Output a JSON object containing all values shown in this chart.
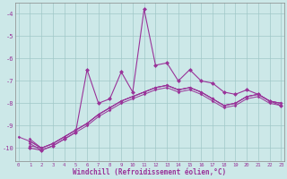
{
  "xlabel": "Windchill (Refroidissement éolien,°C)",
  "background_color": "#cce8e8",
  "line_color": "#993399",
  "x_ticks": [
    0,
    1,
    2,
    3,
    4,
    5,
    6,
    7,
    8,
    9,
    10,
    11,
    12,
    13,
    14,
    15,
    16,
    17,
    18,
    19,
    20,
    21,
    22,
    23
  ],
  "y_ticks": [
    -10,
    -9,
    -8,
    -7,
    -6,
    -5,
    -4
  ],
  "ylim": [
    -10.6,
    -3.5
  ],
  "xlim": [
    -0.3,
    23.3
  ],
  "series_zigzag": [
    null,
    -10.0,
    -10.1,
    -9.9,
    -9.6,
    -9.3,
    -6.5,
    -8.0,
    -7.8,
    -6.6,
    -7.5,
    -3.8,
    -6.3,
    -6.2,
    -7.0,
    -6.5,
    -7.0,
    -7.1,
    -7.5,
    -7.6,
    -7.4,
    -7.6,
    -7.9,
    -8.1
  ],
  "series_straight": [
    [
      -9.5,
      -9.7,
      -10.0,
      null,
      null,
      null,
      null,
      null,
      null,
      null,
      null,
      null,
      null,
      null,
      null,
      null,
      null,
      null,
      null,
      null,
      null,
      null,
      null,
      null
    ],
    [
      null,
      -9.6,
      -10.0,
      -9.8,
      -9.5,
      -9.2,
      -8.9,
      -8.5,
      -8.2,
      -7.9,
      -7.7,
      -7.5,
      -7.3,
      -7.2,
      -7.4,
      -7.3,
      -7.5,
      -7.8,
      -8.1,
      -8.0,
      -7.7,
      -7.6,
      -7.9,
      -8.0
    ],
    [
      null,
      -9.8,
      -10.1,
      -9.9,
      -9.6,
      -9.3,
      -9.0,
      -8.6,
      -8.3,
      -8.0,
      -7.8,
      -7.6,
      -7.4,
      -7.3,
      -7.5,
      -7.4,
      -7.6,
      -7.9,
      -8.2,
      -8.1,
      -7.8,
      -7.7,
      -8.0,
      -8.1
    ],
    [
      null,
      -9.7,
      -10.0,
      -9.8,
      -9.5,
      -9.2,
      -8.9,
      -8.5,
      -8.2,
      -7.9,
      -7.7,
      -7.5,
      -7.3,
      -7.2,
      -7.4,
      -7.3,
      -7.5,
      -7.8,
      -8.1,
      -8.0,
      -7.7,
      -7.6,
      -7.9,
      -8.0
    ],
    [
      null,
      -9.9,
      -10.0,
      -9.8,
      -9.5,
      -9.2,
      -8.9,
      -8.5,
      -8.2,
      -7.9,
      -7.7,
      -7.5,
      -7.3,
      -7.2,
      -7.4,
      -7.3,
      -7.5,
      -7.8,
      -8.1,
      -8.0,
      -7.7,
      -7.6,
      -7.9,
      -8.0
    ]
  ]
}
